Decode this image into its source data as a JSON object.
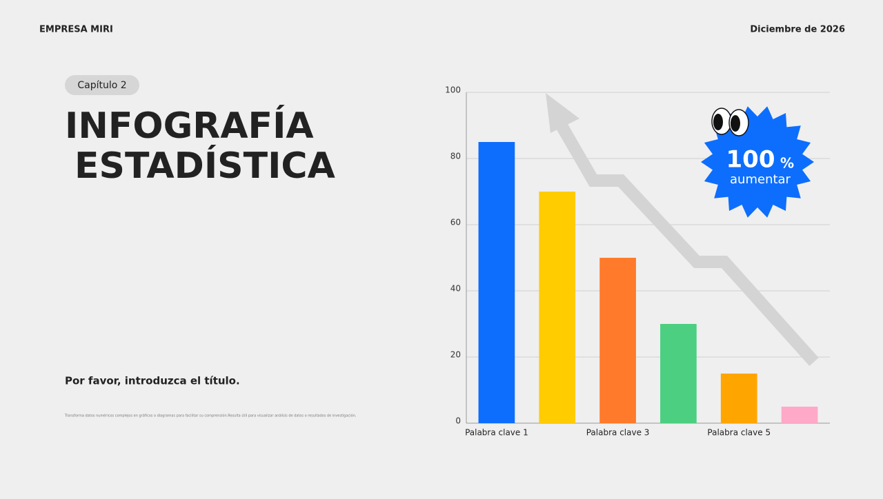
{
  "header": {
    "company": "EMPRESA MIRI",
    "date": "Diciembre de 2026"
  },
  "chapter": "Capítulo 2",
  "title": {
    "line1": "INFOGRAFÍA",
    "line2": "ESTADÍSTICA"
  },
  "subtitle": "Por favor, introduzca el título.",
  "description": "Transforma datos numéricos complejos en gráficos o diagramas para facilitar su comprensión.Resulta útil para visualizar análisis de datos o resultados de investigación.",
  "badge": {
    "number": "100",
    "unit": "%",
    "label": "aumentar"
  },
  "chart_data": {
    "type": "bar",
    "categories": [
      "Palabra clave 1",
      null,
      "Palabra clave 3",
      null,
      "Palabra clave 5",
      null
    ],
    "values": [
      85,
      70,
      50,
      30,
      15,
      5
    ],
    "colors": [
      "#0d6efd",
      "#ffcc00",
      "#ff7a2a",
      "#4ccf80",
      "#ffa500",
      "#ffa9c9"
    ],
    "ylim": [
      0,
      100
    ],
    "yticks": [
      0,
      20,
      40,
      60,
      80,
      100
    ],
    "grid": true
  }
}
